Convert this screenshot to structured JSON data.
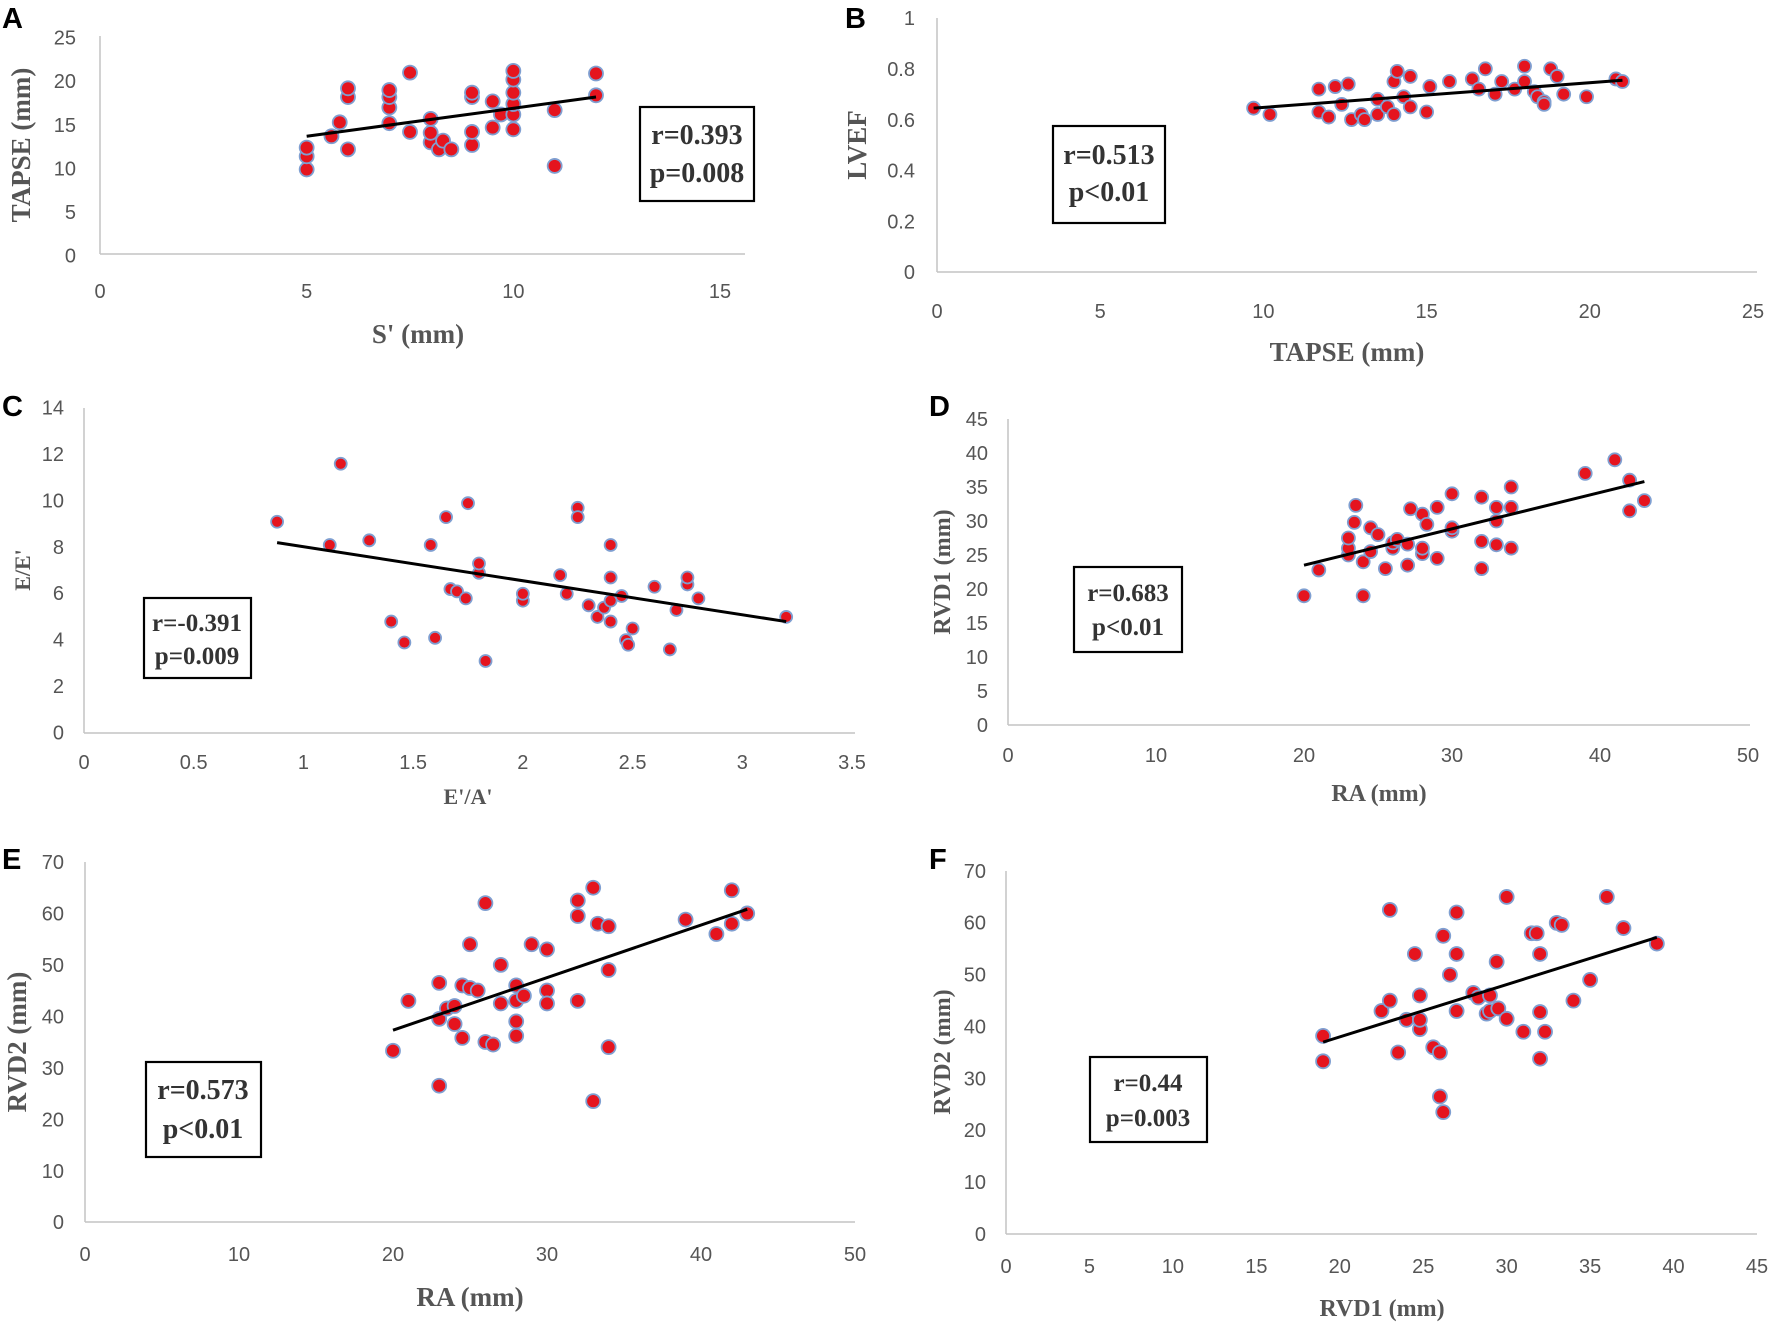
{
  "colors": {
    "point_fill": "#e5141e",
    "point_stroke": "#7f9fd1",
    "trendline": "#000000",
    "axis": "#c4c4c4",
    "text": "#555555"
  },
  "chart_data": [
    {
      "panel": "A",
      "type": "scatter",
      "xlabel": "S' (mm)",
      "ylabel": "TAPSE (mm)",
      "xlim": [
        0,
        15
      ],
      "ylim": [
        0,
        25
      ],
      "xticks": [
        0,
        5,
        10,
        15
      ],
      "yticks": [
        0,
        5,
        10,
        15,
        20,
        25
      ],
      "stats": [
        "r=0.393",
        "p=0.008"
      ],
      "trendline": {
        "x": [
          5,
          12
        ],
        "y": [
          13.5,
          18.0
        ]
      },
      "points": [
        [
          5,
          9.7
        ],
        [
          5,
          11.2
        ],
        [
          5,
          12.2
        ],
        [
          5.6,
          13.5
        ],
        [
          5.8,
          15.1
        ],
        [
          6,
          12
        ],
        [
          6,
          18
        ],
        [
          6,
          19
        ],
        [
          7,
          15
        ],
        [
          7,
          16.8
        ],
        [
          7,
          18
        ],
        [
          7,
          18.8
        ],
        [
          7.5,
          14
        ],
        [
          7.5,
          20.8
        ],
        [
          8,
          12.8
        ],
        [
          8,
          13.9
        ],
        [
          8,
          15.5
        ],
        [
          8.2,
          12
        ],
        [
          8.3,
          13
        ],
        [
          8.5,
          12
        ],
        [
          9,
          12.5
        ],
        [
          9,
          14
        ],
        [
          9,
          18
        ],
        [
          9,
          18.5
        ],
        [
          9.5,
          14.5
        ],
        [
          9.5,
          17.5
        ],
        [
          9.7,
          16
        ],
        [
          10,
          14.3
        ],
        [
          10,
          16
        ],
        [
          10,
          17.2
        ],
        [
          10,
          18.5
        ],
        [
          10,
          20
        ],
        [
          10,
          21
        ],
        [
          11,
          10.1
        ],
        [
          11,
          16.5
        ],
        [
          12,
          18.2
        ],
        [
          12,
          20.7
        ]
      ]
    },
    {
      "panel": "B",
      "type": "scatter",
      "xlabel": "TAPSE (mm)",
      "ylabel": "LVEF",
      "xlim": [
        0,
        25
      ],
      "ylim": [
        0,
        1
      ],
      "xticks": [
        0,
        5,
        10,
        15,
        20,
        25
      ],
      "yticks": [
        0,
        0.2,
        0.4,
        0.6,
        0.8,
        1
      ],
      "stats": [
        "r=0.513",
        "p<0.01"
      ],
      "trendline": {
        "x": [
          9.7,
          21
        ],
        "y": [
          0.645,
          0.755
        ]
      },
      "points": [
        [
          9.7,
          0.645
        ],
        [
          10.2,
          0.62
        ],
        [
          11.7,
          0.72
        ],
        [
          11.7,
          0.63
        ],
        [
          12,
          0.61
        ],
        [
          12.2,
          0.73
        ],
        [
          12.4,
          0.66
        ],
        [
          12.6,
          0.74
        ],
        [
          12.7,
          0.6
        ],
        [
          13,
          0.62
        ],
        [
          13.1,
          0.6
        ],
        [
          13.5,
          0.62
        ],
        [
          13.5,
          0.68
        ],
        [
          13.8,
          0.65
        ],
        [
          14,
          0.62
        ],
        [
          14,
          0.75
        ],
        [
          14.1,
          0.79
        ],
        [
          14.3,
          0.69
        ],
        [
          14.5,
          0.77
        ],
        [
          14.5,
          0.65
        ],
        [
          15,
          0.63
        ],
        [
          15.1,
          0.73
        ],
        [
          15.7,
          0.75
        ],
        [
          16.4,
          0.76
        ],
        [
          16.6,
          0.72
        ],
        [
          16.8,
          0.8
        ],
        [
          17.1,
          0.7
        ],
        [
          17.3,
          0.75
        ],
        [
          17.7,
          0.72
        ],
        [
          18,
          0.81
        ],
        [
          18,
          0.75
        ],
        [
          18.3,
          0.71
        ],
        [
          18.4,
          0.69
        ],
        [
          18.6,
          0.67
        ],
        [
          18.6,
          0.66
        ],
        [
          18.8,
          0.8
        ],
        [
          19,
          0.77
        ],
        [
          19.2,
          0.7
        ],
        [
          19.9,
          0.69
        ],
        [
          20.8,
          0.76
        ],
        [
          21,
          0.75
        ]
      ]
    },
    {
      "panel": "C",
      "type": "scatter",
      "xlabel": "E'/A'",
      "ylabel": "E/E'",
      "xlim": [
        0,
        3.5
      ],
      "ylim": [
        0,
        14
      ],
      "xticks": [
        "0",
        "0.5",
        "1",
        "1.5",
        "2",
        "2.5",
        "3",
        "3.5"
      ],
      "yticks": [
        0,
        2,
        4,
        6,
        8,
        10,
        12,
        14
      ],
      "stats": [
        "r=-0.391",
        "p=0.009"
      ],
      "trendline": {
        "x": [
          0.88,
          3.2
        ],
        "y": [
          8.2,
          4.8
        ]
      },
      "points": [
        [
          0.88,
          9.1
        ],
        [
          1.12,
          8.1
        ],
        [
          1.17,
          11.6
        ],
        [
          1.3,
          8.3
        ],
        [
          1.4,
          4.8
        ],
        [
          1.46,
          3.9
        ],
        [
          1.58,
          8.1
        ],
        [
          1.6,
          4.1
        ],
        [
          1.65,
          9.3
        ],
        [
          1.67,
          6.2
        ],
        [
          1.7,
          6.1
        ],
        [
          1.74,
          5.8
        ],
        [
          1.75,
          9.9
        ],
        [
          1.8,
          6.9
        ],
        [
          1.8,
          7.3
        ],
        [
          1.83,
          3.1
        ],
        [
          2,
          5.7
        ],
        [
          2,
          6
        ],
        [
          2.17,
          6.8
        ],
        [
          2.2,
          6
        ],
        [
          2.25,
          9.7
        ],
        [
          2.25,
          9.3
        ],
        [
          2.3,
          5.5
        ],
        [
          2.34,
          5
        ],
        [
          2.37,
          5.4
        ],
        [
          2.4,
          4.8
        ],
        [
          2.4,
          5.7
        ],
        [
          2.4,
          6.7
        ],
        [
          2.4,
          8.1
        ],
        [
          2.45,
          5.9
        ],
        [
          2.47,
          4
        ],
        [
          2.48,
          3.8
        ],
        [
          2.5,
          4.5
        ],
        [
          2.6,
          6.3
        ],
        [
          2.67,
          3.6
        ],
        [
          2.7,
          5.3
        ],
        [
          2.75,
          6.4
        ],
        [
          2.75,
          6.7
        ],
        [
          2.8,
          5.8
        ],
        [
          3.2,
          5
        ]
      ]
    },
    {
      "panel": "D",
      "type": "scatter",
      "xlabel": "RA (mm)",
      "ylabel": "RVD1 (mm)",
      "xlim": [
        0,
        50
      ],
      "ylim": [
        0,
        45
      ],
      "xticks": [
        0,
        10,
        20,
        30,
        40,
        50
      ],
      "yticks": [
        0,
        5,
        10,
        15,
        20,
        25,
        30,
        35,
        40,
        45
      ],
      "stats": [
        "r=0.683",
        "p<0.01"
      ],
      "trendline": {
        "x": [
          20,
          43
        ],
        "y": [
          23.5,
          35.8
        ]
      },
      "points": [
        [
          20,
          19
        ],
        [
          21,
          22.8
        ],
        [
          23,
          25
        ],
        [
          23,
          26
        ],
        [
          23,
          27.5
        ],
        [
          23.4,
          29.8
        ],
        [
          23.5,
          32.3
        ],
        [
          24,
          24
        ],
        [
          24,
          19
        ],
        [
          24.5,
          25.5
        ],
        [
          24.5,
          29
        ],
        [
          25,
          28
        ],
        [
          25.5,
          23
        ],
        [
          26,
          26
        ],
        [
          26,
          26.8
        ],
        [
          26.3,
          27.3
        ],
        [
          27,
          23.5
        ],
        [
          27,
          26.6
        ],
        [
          27.2,
          31.8
        ],
        [
          28,
          25.2
        ],
        [
          28,
          26
        ],
        [
          28,
          31
        ],
        [
          28.3,
          29.5
        ],
        [
          29,
          24.5
        ],
        [
          29,
          32
        ],
        [
          30,
          28.5
        ],
        [
          30,
          29
        ],
        [
          30,
          34
        ],
        [
          32,
          23
        ],
        [
          32,
          27
        ],
        [
          32,
          33.5
        ],
        [
          33,
          26.5
        ],
        [
          33,
          30
        ],
        [
          33,
          32
        ],
        [
          34,
          26
        ],
        [
          34,
          32
        ],
        [
          34,
          35
        ],
        [
          39,
          37
        ],
        [
          41,
          39
        ],
        [
          42,
          31.5
        ],
        [
          42,
          36
        ],
        [
          43,
          33
        ]
      ]
    },
    {
      "panel": "E",
      "type": "scatter",
      "xlabel": "RA (mm)",
      "ylabel": "RVD2 (mm)",
      "xlim": [
        0,
        50
      ],
      "ylim": [
        0,
        70
      ],
      "xticks": [
        0,
        10,
        20,
        30,
        40,
        50
      ],
      "yticks": [
        0,
        10,
        20,
        30,
        40,
        50,
        60,
        70
      ],
      "stats": [
        "r=0.573",
        "p<0.01"
      ],
      "trendline": {
        "x": [
          20,
          43
        ],
        "y": [
          37.3,
          60.8
        ]
      },
      "points": [
        [
          20,
          33.3
        ],
        [
          21,
          43
        ],
        [
          23,
          26.5
        ],
        [
          23,
          39.5
        ],
        [
          23,
          46.5
        ],
        [
          23.5,
          41.5
        ],
        [
          24,
          38.5
        ],
        [
          24,
          42
        ],
        [
          24.5,
          35.8
        ],
        [
          24.5,
          46
        ],
        [
          25,
          45.5
        ],
        [
          25,
          54
        ],
        [
          25.5,
          45
        ],
        [
          26,
          35
        ],
        [
          26,
          62
        ],
        [
          26.5,
          34.5
        ],
        [
          27,
          50
        ],
        [
          27,
          42.5
        ],
        [
          28,
          43
        ],
        [
          28,
          46
        ],
        [
          28,
          39
        ],
        [
          28,
          36.2
        ],
        [
          28.5,
          44
        ],
        [
          29,
          54
        ],
        [
          30,
          45
        ],
        [
          30,
          42.5
        ],
        [
          30,
          53
        ],
        [
          32,
          43
        ],
        [
          32,
          59.5
        ],
        [
          32,
          62.5
        ],
        [
          33,
          23.5
        ],
        [
          33,
          65
        ],
        [
          33.3,
          58
        ],
        [
          34,
          57.5
        ],
        [
          34,
          49
        ],
        [
          34,
          34
        ],
        [
          39,
          58.8
        ],
        [
          41,
          56
        ],
        [
          42,
          58
        ],
        [
          42,
          64.5
        ],
        [
          43,
          60
        ]
      ]
    },
    {
      "panel": "F",
      "type": "scatter",
      "xlabel": "RVD1 (mm)",
      "ylabel": "RVD2 (mm)",
      "xlim": [
        0,
        45
      ],
      "ylim": [
        0,
        70
      ],
      "xticks": [
        0,
        5,
        10,
        15,
        20,
        25,
        30,
        35,
        40,
        45
      ],
      "yticks": [
        0,
        10,
        20,
        30,
        40,
        50,
        60,
        70
      ],
      "stats": [
        "r=0.44",
        "p=0.003"
      ],
      "trendline": {
        "x": [
          19,
          39
        ],
        "y": [
          37,
          57.2
        ]
      },
      "points": [
        [
          19,
          33.3
        ],
        [
          19,
          38.2
        ],
        [
          22.5,
          43
        ],
        [
          23,
          45
        ],
        [
          23,
          62.5
        ],
        [
          23.5,
          35
        ],
        [
          24,
          41.3
        ],
        [
          24.5,
          54
        ],
        [
          24.8,
          39.5
        ],
        [
          24.8,
          41.3
        ],
        [
          24.8,
          46
        ],
        [
          25.6,
          36
        ],
        [
          26,
          35
        ],
        [
          26,
          26.5
        ],
        [
          26.2,
          23.5
        ],
        [
          26.2,
          57.5
        ],
        [
          26.6,
          50
        ],
        [
          27,
          54
        ],
        [
          27,
          62
        ],
        [
          27,
          43
        ],
        [
          28,
          46.5
        ],
        [
          28.3,
          45.6
        ],
        [
          28.8,
          42.5
        ],
        [
          29,
          43
        ],
        [
          29,
          46
        ],
        [
          29.4,
          52.5
        ],
        [
          29.5,
          43.5
        ],
        [
          30,
          65
        ],
        [
          30,
          41.5
        ],
        [
          31,
          39
        ],
        [
          31.5,
          58
        ],
        [
          31.8,
          58
        ],
        [
          32,
          33.8
        ],
        [
          32,
          42.8
        ],
        [
          32,
          54
        ],
        [
          32.3,
          39
        ],
        [
          33,
          60
        ],
        [
          33.3,
          59.6
        ],
        [
          34,
          45
        ],
        [
          35,
          49
        ],
        [
          36,
          65
        ],
        [
          37,
          59
        ],
        [
          39,
          56
        ]
      ]
    }
  ]
}
